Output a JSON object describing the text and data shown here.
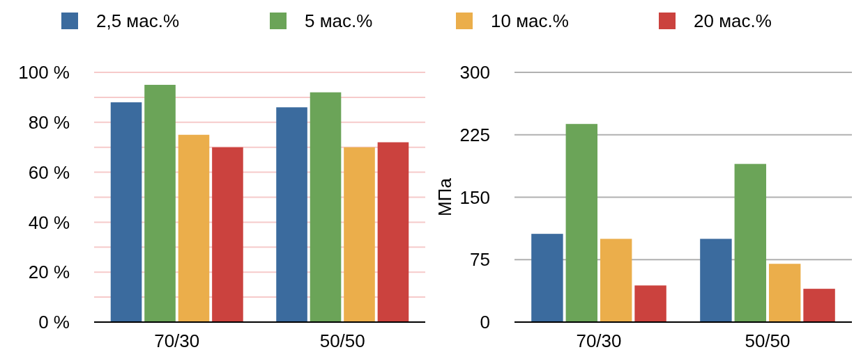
{
  "chart_data": [
    {
      "type": "bar",
      "categories": [
        "70/30",
        "50/50"
      ],
      "series": [
        {
          "name": "2,5 мас.%",
          "color": "#3b6b9e",
          "values": [
            88,
            86
          ]
        },
        {
          "name": "5 мас.%",
          "color": "#6ba458",
          "values": [
            95,
            92
          ]
        },
        {
          "name": "10 мас.%",
          "color": "#ebae4b",
          "values": [
            75,
            70
          ]
        },
        {
          "name": "20 мас.%",
          "color": "#cb423e",
          "values": [
            70,
            72
          ]
        }
      ],
      "ylim": [
        0,
        100
      ],
      "yticks": [
        {
          "value": 0,
          "label": "0 %"
        },
        {
          "value": 10,
          "label": null
        },
        {
          "value": 20,
          "label": "20 %"
        },
        {
          "value": 30,
          "label": null
        },
        {
          "value": 40,
          "label": "40 %"
        },
        {
          "value": 50,
          "label": null
        },
        {
          "value": 60,
          "label": "60 %"
        },
        {
          "value": 70,
          "label": null
        },
        {
          "value": 80,
          "label": "80 %"
        },
        {
          "value": 90,
          "label": null
        },
        {
          "value": 100,
          "label": "100 %"
        }
      ],
      "grid": true,
      "legend": "top"
    },
    {
      "type": "bar",
      "categories": [
        "70/30",
        "50/50"
      ],
      "series": [
        {
          "color": "#3b6b9e",
          "values": [
            106,
            100
          ]
        },
        {
          "color": "#6ba458",
          "values": [
            238,
            190
          ]
        },
        {
          "color": "#ebae4b",
          "values": [
            100,
            70
          ]
        },
        {
          "color": "#cb423e",
          "values": [
            44,
            40
          ]
        }
      ],
      "ylabel": "МПа",
      "ylim": [
        0,
        300
      ],
      "yticks": [
        0,
        75,
        150,
        225,
        300
      ],
      "grid": true
    }
  ]
}
